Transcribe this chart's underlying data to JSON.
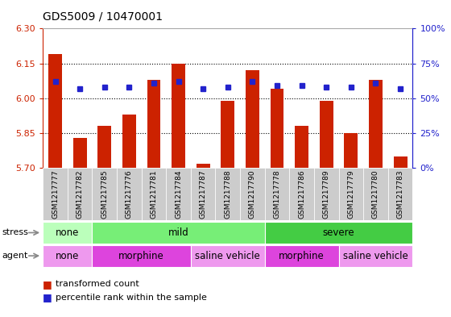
{
  "title": "GDS5009 / 10470001",
  "samples": [
    "GSM1217777",
    "GSM1217782",
    "GSM1217785",
    "GSM1217776",
    "GSM1217781",
    "GSM1217784",
    "GSM1217787",
    "GSM1217788",
    "GSM1217790",
    "GSM1217778",
    "GSM1217786",
    "GSM1217789",
    "GSM1217779",
    "GSM1217780",
    "GSM1217783"
  ],
  "bar_values": [
    6.19,
    5.83,
    5.88,
    5.93,
    6.08,
    6.15,
    5.72,
    5.99,
    6.12,
    6.04,
    5.88,
    5.99,
    5.85,
    6.08,
    5.75
  ],
  "percentile_values": [
    62,
    57,
    58,
    58,
    61,
    62,
    57,
    58,
    62,
    59,
    59,
    58,
    58,
    61,
    57
  ],
  "ylim_left": [
    5.7,
    6.3
  ],
  "ylim_right": [
    0,
    100
  ],
  "yticks_left": [
    5.7,
    5.85,
    6.0,
    6.15,
    6.3
  ],
  "yticks_right": [
    0,
    25,
    50,
    75,
    100
  ],
  "ytick_labels_right": [
    "0%",
    "25%",
    "50%",
    "75%",
    "100%"
  ],
  "hlines": [
    5.85,
    6.0,
    6.15
  ],
  "bar_color": "#cc2200",
  "percentile_color": "#2222cc",
  "bar_bottom": 5.7,
  "stress_groups": [
    {
      "label": "none",
      "start": 0,
      "end": 2,
      "color": "#bbffbb"
    },
    {
      "label": "mild",
      "start": 2,
      "end": 9,
      "color": "#77ee77"
    },
    {
      "label": "severe",
      "start": 9,
      "end": 15,
      "color": "#44cc44"
    }
  ],
  "agent_groups": [
    {
      "label": "none",
      "start": 0,
      "end": 2,
      "color": "#ee99ee"
    },
    {
      "label": "morphine",
      "start": 2,
      "end": 6,
      "color": "#dd44dd"
    },
    {
      "label": "saline vehicle",
      "start": 6,
      "end": 9,
      "color": "#ee99ee"
    },
    {
      "label": "morphine",
      "start": 9,
      "end": 12,
      "color": "#dd44dd"
    },
    {
      "label": "saline vehicle",
      "start": 12,
      "end": 15,
      "color": "#ee99ee"
    }
  ],
  "bg_color": "#ffffff",
  "tick_color_left": "#cc2200",
  "tick_color_right": "#2222cc",
  "xtick_bg": "#cccccc"
}
